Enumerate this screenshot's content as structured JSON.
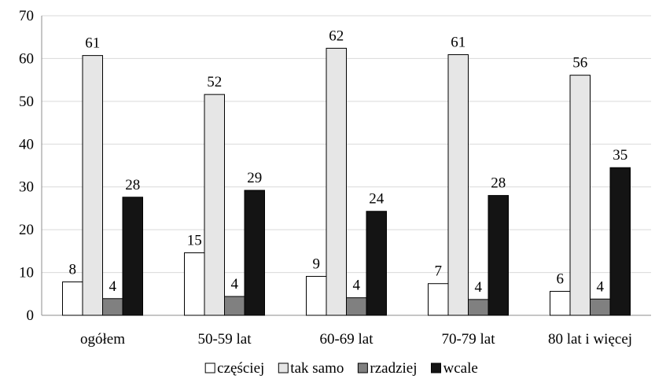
{
  "chart_data": {
    "type": "bar",
    "title": "",
    "xlabel": "",
    "ylabel": "",
    "ylim": [
      0,
      70
    ],
    "yticks": [
      0,
      10,
      20,
      30,
      40,
      50,
      60,
      70
    ],
    "grid": true,
    "legend_position": "bottom",
    "categories": [
      "ogółem",
      "50-59 lat",
      "60-69 lat",
      "70-79 lat",
      "80 lat i więcej"
    ],
    "series": [
      {
        "name": "częściej",
        "color": "#ffffff",
        "values": [
          7.8,
          14.6,
          9.1,
          7.4,
          5.6
        ],
        "labels": [
          "8",
          "15",
          "9",
          "7",
          "6"
        ]
      },
      {
        "name": "tak samo",
        "color": "#e6e6e6",
        "values": [
          60.7,
          51.6,
          62.4,
          60.9,
          56.1
        ],
        "labels": [
          "61",
          "52",
          "62",
          "61",
          "56"
        ]
      },
      {
        "name": "rzadziej",
        "color": "#808080",
        "values": [
          3.9,
          4.4,
          4.1,
          3.7,
          3.8
        ],
        "labels": [
          "4",
          "4",
          "4",
          "4",
          "4"
        ]
      },
      {
        "name": "wcale",
        "color": "#141414",
        "values": [
          27.6,
          29.2,
          24.3,
          28.0,
          34.5
        ],
        "labels": [
          "28",
          "29",
          "24",
          "28",
          "35"
        ]
      }
    ]
  }
}
